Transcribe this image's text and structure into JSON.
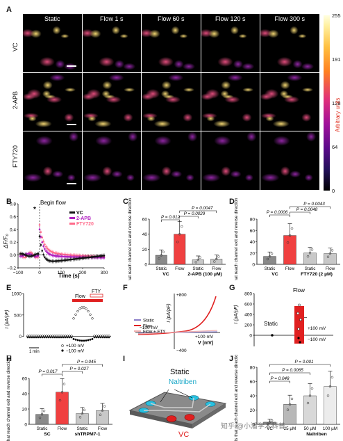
{
  "panelA": {
    "label": "A",
    "columns": [
      "Static",
      "Flow 1 s",
      "Flow 60 s",
      "Flow 120 s",
      "Flow 300 s"
    ],
    "rows": [
      "VC",
      "2-APB",
      "FTY720"
    ],
    "colorbar": {
      "ticks": [
        "255",
        "191",
        "128",
        "64",
        "0"
      ],
      "title": "Arbitrary units"
    }
  },
  "panelB": {
    "label": "B",
    "annotation": "Begin flow",
    "star": "*",
    "ylabel": "ΔF/F₀",
    "xlabel": "Time (s)",
    "yticks": [
      "0.8",
      "0.6",
      "0.4",
      "0.2",
      "0.0",
      "−0.2"
    ],
    "xticks": [
      "−100",
      "0",
      "100",
      "200",
      "300"
    ],
    "legend": [
      "VC",
      "2-APB",
      "FTY720"
    ],
    "colors": [
      "#111111",
      "#b020c0",
      "#ff6a8a"
    ]
  },
  "panelC": {
    "label": "C",
    "ylabel": "Cells that reach channel exit and reverse direction (%)",
    "yticks": [
      "0",
      "20",
      "40",
      "60"
    ],
    "bars": [
      "Static",
      "Flow",
      "Static",
      "Flow"
    ],
    "values": [
      12,
      40,
      6,
      7
    ],
    "groups": [
      "VC",
      "2-APB (100 µM)"
    ],
    "pvalues": [
      "P = 0.0047",
      "P = 0.012",
      "P = 0.0029"
    ]
  },
  "panelD": {
    "label": "D",
    "ylabel": "Cells that reach channel exit and reverse direction (%)",
    "yticks": [
      "0",
      "20",
      "40",
      "60",
      "80"
    ],
    "bars": [
      "Static",
      "Flow",
      "Static",
      "Flow"
    ],
    "values": [
      14,
      51,
      20,
      19
    ],
    "groups": [
      "VC",
      "FTY720 (2 µM)"
    ],
    "pvalues": [
      "P = 0.0043",
      "P = 0.0006",
      "P = 0.0048"
    ]
  },
  "panelE": {
    "label": "E",
    "ylabel": "I (pA/pF)",
    "yticks": [
      "1000",
      "500",
      "0"
    ],
    "flow": "Flow",
    "fty": "FTY",
    "scale": "1 min",
    "legend": [
      "+100 mV",
      "−100 mV"
    ]
  },
  "panelF": {
    "label": "F",
    "ylabel": "I (pA/pF)",
    "xlabel": "V (mV)",
    "top": "+800",
    "bottom": "−400",
    "left": "−100 mV",
    "right": "+100 mV",
    "legend": [
      "Static",
      "Flow",
      "Flow + FTY"
    ]
  },
  "panelG": {
    "label": "G",
    "ylabel": "I (pA/pF)",
    "yticks": [
      "800",
      "600",
      "400",
      "200",
      "0"
    ],
    "flow": "Flow",
    "static": "Static",
    "legend": [
      "+100 mV",
      "−100 mV"
    ]
  },
  "panelH": {
    "label": "H",
    "ylabel": "Cells that reach channel exit and reverse direction (%)",
    "yticks": [
      "0",
      "20",
      "40",
      "60"
    ],
    "bars": [
      "Static",
      "Flow",
      "Static",
      "Flow"
    ],
    "values": [
      13,
      42,
      14,
      18
    ],
    "groups": [
      "SC",
      "shTRPM7-1"
    ],
    "pvalues": [
      "P = 0.045",
      "P = 0.017",
      "P = 0.027"
    ]
  },
  "panelI": {
    "label": "I",
    "static": "Static",
    "drug": "Naltriben",
    "vc": "VC"
  },
  "panelJ": {
    "label": "J",
    "ylabel": "Cells that reach channel exit and reverse direction (%)",
    "yticks": [
      "0",
      "20",
      "40",
      "60",
      "80"
    ],
    "bars": [
      "VC",
      "25 µM",
      "50 µM",
      "100 µM"
    ],
    "values": [
      3,
      28,
      40,
      53
    ],
    "groups": [
      "Naltriben"
    ],
    "pvalues": [
      "P = 0.001",
      "P = 0.0065",
      "P = 0.048"
    ]
  },
  "watermark": "知乎 @小潘学术科普"
}
